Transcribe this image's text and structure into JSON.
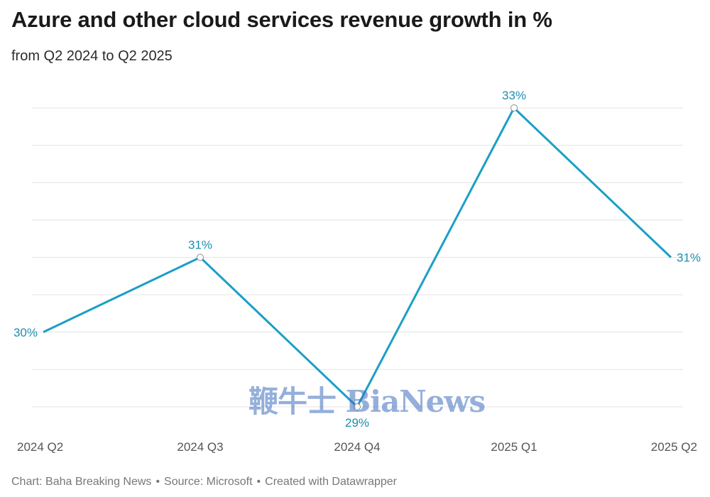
{
  "header": {
    "title": "Azure and other cloud services revenue growth in %",
    "subtitle": "from Q2 2024 to Q2 2025"
  },
  "footer": {
    "chart_credit": "Chart: Baha Breaking News",
    "source": "Source: Microsoft",
    "tool": "Created with Datawrapper",
    "separator": "•"
  },
  "watermark": {
    "text": "鞭牛士 BiaNews"
  },
  "colors": {
    "line": "#1b9fc6",
    "label": "#1b8fb0",
    "grid": "#e4e4e4",
    "tick": "#555555"
  },
  "chart_data": {
    "type": "line",
    "title": "Azure and other cloud services revenue growth in %",
    "subtitle": "from Q2 2024 to Q2 2025",
    "xlabel": "",
    "ylabel": "",
    "categories": [
      "2024 Q2",
      "2024 Q3",
      "2024 Q4",
      "2025 Q1",
      "2025 Q2"
    ],
    "series": [
      {
        "name": "Revenue growth",
        "values": [
          30,
          31,
          29,
          33,
          31
        ],
        "labels": [
          "30%",
          "31%",
          "29%",
          "33%",
          "31%"
        ]
      }
    ],
    "ylim": [
      29,
      33
    ],
    "grid": true,
    "gridline_count": 9
  }
}
